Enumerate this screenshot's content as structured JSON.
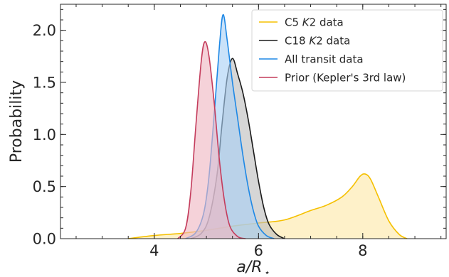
{
  "chart_data": {
    "type": "area",
    "xlabel": "a/R",
    "xlabel_sub": "⋆",
    "ylabel": "Probability",
    "xlim": [
      2.2,
      9.6
    ],
    "ylim": [
      0.0,
      2.25
    ],
    "x_ticks": [
      4,
      6,
      8
    ],
    "x_tick_labels": [
      "4",
      "6",
      "8"
    ],
    "x_minor_step": 0.5,
    "y_ticks": [
      0.0,
      0.5,
      1.0,
      1.5,
      2.0
    ],
    "y_tick_labels": [
      "0.0",
      "0.5",
      "1.0",
      "1.5",
      "2.0"
    ],
    "y_minor_step": 0.1,
    "grid": false,
    "legend_position": "top-right",
    "legend": {
      "c5": {
        "pre": "C5 ",
        "italic": "K",
        "post": "2 data"
      },
      "c18": {
        "pre": "C18 ",
        "italic": "K",
        "post": "2 data"
      },
      "all": {
        "pre": "All transit data",
        "italic": "",
        "post": ""
      },
      "prior": {
        "pre": "Prior (Kepler's 3rd law)",
        "italic": "",
        "post": ""
      }
    },
    "series": [
      {
        "id": "c5",
        "color": "#f5c000",
        "fill": "#fde9a8",
        "x": [
          3.5,
          4.0,
          4.5,
          5.0,
          5.5,
          6.0,
          6.5,
          7.0,
          7.3,
          7.6,
          7.8,
          7.95,
          8.05,
          8.15,
          8.3,
          8.5,
          8.7,
          8.85
        ],
        "y": [
          0.0,
          0.03,
          0.05,
          0.08,
          0.12,
          0.15,
          0.18,
          0.27,
          0.32,
          0.4,
          0.5,
          0.6,
          0.62,
          0.57,
          0.4,
          0.17,
          0.04,
          0.0
        ]
      },
      {
        "id": "c18",
        "color": "#1a1a1a",
        "fill": "#bdbdbd",
        "x": [
          4.7,
          4.9,
          5.05,
          5.2,
          5.3,
          5.4,
          5.5,
          5.6,
          5.7,
          5.8,
          5.9,
          6.0,
          6.1,
          6.2,
          6.35,
          6.5
        ],
        "y": [
          0.0,
          0.05,
          0.2,
          0.6,
          1.1,
          1.55,
          1.73,
          1.58,
          1.4,
          1.15,
          0.85,
          0.55,
          0.3,
          0.14,
          0.04,
          0.0
        ]
      },
      {
        "id": "all",
        "color": "#1e88e5",
        "fill": "#a9d1f5",
        "x": [
          4.6,
          4.8,
          4.95,
          5.05,
          5.15,
          5.25,
          5.32,
          5.4,
          5.5,
          5.6,
          5.7,
          5.8,
          5.9,
          6.0,
          6.15,
          6.3
        ],
        "y": [
          0.0,
          0.06,
          0.25,
          0.6,
          1.2,
          1.85,
          2.15,
          1.9,
          1.5,
          1.15,
          0.8,
          0.5,
          0.27,
          0.12,
          0.03,
          0.0
        ]
      },
      {
        "id": "prior",
        "color": "#c43c5c",
        "fill": "#efb6c2",
        "x": [
          4.45,
          4.6,
          4.7,
          4.8,
          4.9,
          4.97,
          5.05,
          5.15,
          5.25,
          5.35,
          5.45,
          5.6,
          5.75
        ],
        "y": [
          0.0,
          0.1,
          0.45,
          1.1,
          1.7,
          1.89,
          1.75,
          1.3,
          0.75,
          0.35,
          0.12,
          0.02,
          0.0
        ]
      }
    ]
  }
}
